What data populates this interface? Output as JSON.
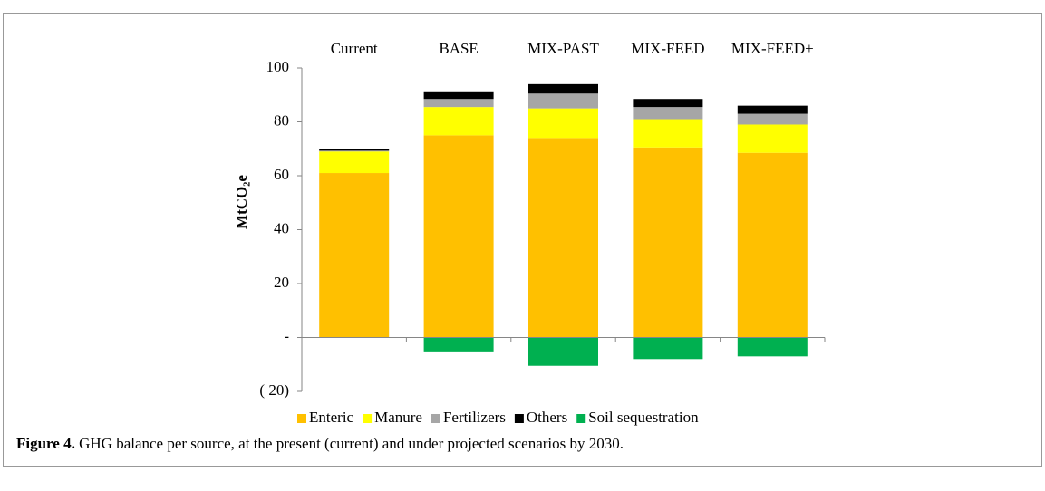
{
  "chart_data": {
    "type": "stacked_bar",
    "y_label": "MtCO₂e",
    "categories": [
      "Current",
      "BASE",
      "MIX-PAST",
      "MIX-FEED",
      "MIX-FEED+"
    ],
    "series": [
      {
        "name": "Enteric",
        "color": "#ffc000",
        "values": [
          61,
          75,
          74,
          70.5,
          68.5
        ]
      },
      {
        "name": "Manure",
        "color": "#ffff00",
        "values": [
          8,
          10.5,
          11,
          10.5,
          10.5
        ]
      },
      {
        "name": "Fertilizers",
        "color": "#a6a6a6",
        "values": [
          0.3,
          3,
          5.5,
          4.5,
          4
        ]
      },
      {
        "name": "Others",
        "color": "#000000",
        "values": [
          0.7,
          2.5,
          3.5,
          3,
          3
        ]
      },
      {
        "name": "Soil sequestration",
        "color": "#00b050",
        "values": [
          0,
          -5.5,
          -10.5,
          -8,
          -7
        ]
      }
    ],
    "ylim": [
      -20,
      100
    ],
    "yticks": [
      {
        "value": -20,
        "label": "( 20)"
      },
      {
        "value": 0,
        "label": "-"
      },
      20,
      40,
      60,
      80,
      100
    ],
    "grid": false,
    "legend": "bottom",
    "caption_label": "Figure 4.",
    "caption": " GHG balance per source, at the present (current) and under projected scenarios by 2030."
  }
}
